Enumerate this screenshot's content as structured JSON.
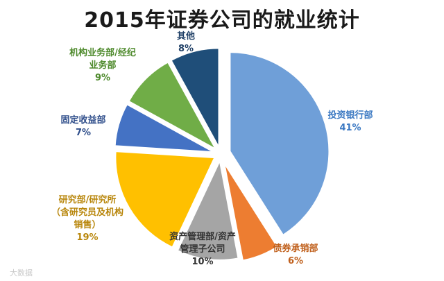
{
  "chart_data": {
    "type": "pie",
    "title": "2015年证券公司的就业统计",
    "slices": [
      {
        "label": "投资银行部",
        "value": 41,
        "value_text": "41%",
        "color": "#6f9fd8",
        "label_color": "#3a78c2"
      },
      {
        "label": "债券承销部",
        "value": 6,
        "value_text": "6%",
        "color": "#ed7d31",
        "label_color": "#c0601c"
      },
      {
        "label": "资产管理部/资产管理子公司",
        "value": 10,
        "value_text": "10%",
        "color": "#a5a5a5",
        "label_color": "#333333"
      },
      {
        "label": "研究部/研究所（含研究员及机构销售）",
        "value": 19,
        "value_text": "19%",
        "color": "#ffc000",
        "label_color": "#b8860b"
      },
      {
        "label": "固定收益部",
        "value": 7,
        "value_text": "7%",
        "color": "#4472c4",
        "label_color": "#2e4d8a"
      },
      {
        "label": "机构业务部/经纪业务部",
        "value": 9,
        "value_text": "9%",
        "color": "#70ad47",
        "label_color": "#4e8a2c"
      },
      {
        "label": "其他",
        "value": 8,
        "value_text": "8%",
        "color": "#1f4e79",
        "label_color": "#1f3f66"
      }
    ],
    "legend": "none"
  },
  "watermark": "大数据"
}
